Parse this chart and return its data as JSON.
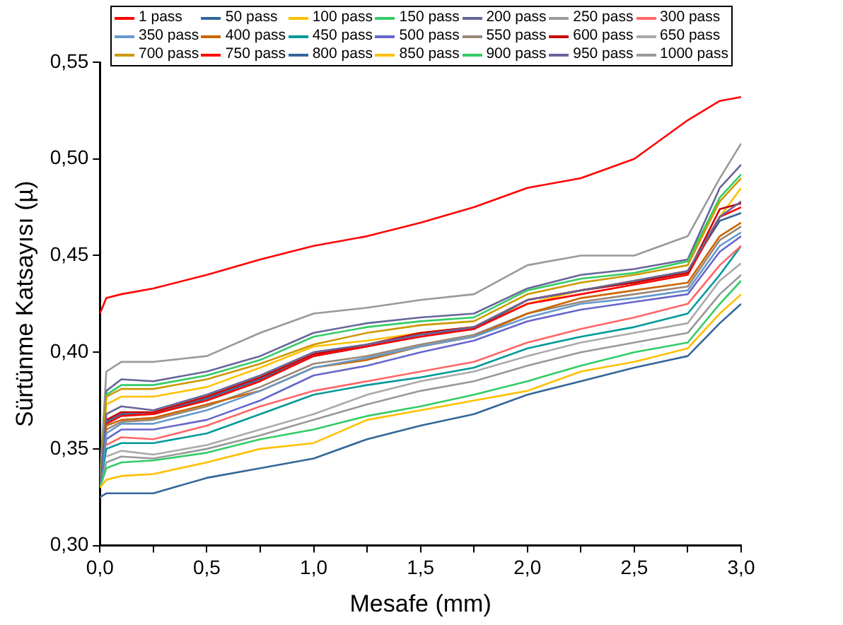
{
  "chart_data": {
    "type": "line",
    "xlabel": "Mesafe (mm)",
    "ylabel": "Sürtünme Katsayısı (µ)",
    "x": [
      0,
      0.03,
      0.1,
      0.25,
      0.5,
      0.75,
      1.0,
      1.25,
      1.5,
      1.75,
      2.0,
      2.25,
      2.5,
      2.75,
      2.9,
      3.0
    ],
    "xlim": [
      0,
      3
    ],
    "ylim": [
      0.3,
      0.55
    ],
    "xticks": [
      {
        "value": 0,
        "label": "0,0"
      },
      {
        "value": 0.25,
        "label": null
      },
      {
        "value": 0.5,
        "label": "0,5"
      },
      {
        "value": 0.75,
        "label": null
      },
      {
        "value": 1,
        "label": "1,0"
      },
      {
        "value": 1.25,
        "label": null
      },
      {
        "value": 1.5,
        "label": "1,5"
      },
      {
        "value": 1.75,
        "label": null
      },
      {
        "value": 2,
        "label": "2,0"
      },
      {
        "value": 2.25,
        "label": null
      },
      {
        "value": 2.5,
        "label": "2,5"
      },
      {
        "value": 2.75,
        "label": null
      },
      {
        "value": 3,
        "label": "3,0"
      }
    ],
    "yticks": [
      {
        "value": 0.3,
        "label": "0,30"
      },
      {
        "value": 0.35,
        "label": "0,35"
      },
      {
        "value": 0.4,
        "label": "0,40"
      },
      {
        "value": 0.45,
        "label": "0,45"
      },
      {
        "value": 0.5,
        "label": "0,50"
      },
      {
        "value": 0.55,
        "label": "0,55"
      }
    ],
    "grid": false,
    "legend": "top",
    "marker": "none",
    "line_style": "solid",
    "series": [
      {
        "name": "1 pass",
        "color": "#ff0000",
        "values": [
          0.42,
          0.428,
          0.43,
          0.433,
          0.44,
          0.448,
          0.455,
          0.46,
          0.467,
          0.475,
          0.485,
          0.49,
          0.5,
          0.52,
          0.53,
          0.532
        ]
      },
      {
        "name": "50 pass",
        "color": "#336699",
        "values": [
          0.325,
          0.327,
          0.327,
          0.327,
          0.335,
          0.34,
          0.345,
          0.355,
          0.362,
          0.368,
          0.378,
          0.385,
          0.392,
          0.398,
          0.415,
          0.425
        ]
      },
      {
        "name": "100 pass",
        "color": "#ffc000",
        "values": [
          0.33,
          0.334,
          0.336,
          0.337,
          0.343,
          0.35,
          0.353,
          0.365,
          0.37,
          0.375,
          0.38,
          0.39,
          0.395,
          0.402,
          0.42,
          0.43
        ]
      },
      {
        "name": "150 pass",
        "color": "#33cc66",
        "values": [
          0.33,
          0.34,
          0.343,
          0.344,
          0.348,
          0.355,
          0.36,
          0.367,
          0.372,
          0.378,
          0.385,
          0.393,
          0.4,
          0.405,
          0.425,
          0.437
        ]
      },
      {
        "name": "200 pass",
        "color": "#666699",
        "values": [
          0.33,
          0.368,
          0.372,
          0.37,
          0.378,
          0.388,
          0.4,
          0.404,
          0.409,
          0.413,
          0.427,
          0.432,
          0.437,
          0.442,
          0.47,
          0.478
        ]
      },
      {
        "name": "250 pass",
        "color": "#999999",
        "values": [
          0.33,
          0.343,
          0.346,
          0.345,
          0.35,
          0.357,
          0.365,
          0.373,
          0.38,
          0.385,
          0.393,
          0.4,
          0.405,
          0.41,
          0.43,
          0.44
        ]
      },
      {
        "name": "300 pass",
        "color": "#ff6666",
        "values": [
          null,
          0.352,
          0.356,
          0.355,
          0.362,
          0.372,
          0.38,
          0.385,
          0.39,
          0.395,
          0.405,
          0.412,
          0.418,
          0.425,
          0.445,
          0.455
        ]
      },
      {
        "name": "350 pass",
        "color": "#6699cc",
        "values": [
          0.33,
          0.358,
          0.363,
          0.363,
          0.37,
          0.38,
          0.392,
          0.397,
          0.403,
          0.408,
          0.418,
          0.425,
          0.428,
          0.432,
          0.455,
          0.462
        ]
      },
      {
        "name": "400 pass",
        "color": "#cc6600",
        "values": [
          0.33,
          0.362,
          0.365,
          0.366,
          0.373,
          0.38,
          0.392,
          0.396,
          0.403,
          0.408,
          0.42,
          0.428,
          0.432,
          0.436,
          0.46,
          0.467
        ]
      },
      {
        "name": "450 pass",
        "color": "#009999",
        "values": [
          0.33,
          0.35,
          0.353,
          0.353,
          0.358,
          0.368,
          0.378,
          0.383,
          0.387,
          0.392,
          0.402,
          0.408,
          0.413,
          0.42,
          0.44,
          0.455
        ]
      },
      {
        "name": "500 pass",
        "color": "#6666cc",
        "values": [
          0.33,
          0.355,
          0.36,
          0.36,
          0.365,
          0.375,
          0.388,
          0.393,
          0.4,
          0.406,
          0.416,
          0.422,
          0.426,
          0.43,
          0.452,
          0.46
        ]
      },
      {
        "name": "550 pass",
        "color": "#998877",
        "values": [
          0.33,
          0.36,
          0.364,
          0.365,
          0.372,
          0.382,
          0.394,
          0.398,
          0.404,
          0.409,
          0.42,
          0.426,
          0.43,
          0.434,
          0.458,
          0.465
        ]
      },
      {
        "name": "600 pass",
        "color": "#cc0000",
        "values": [
          null,
          0.365,
          0.369,
          0.369,
          0.377,
          0.387,
          0.399,
          0.404,
          0.41,
          0.413,
          0.427,
          0.432,
          0.436,
          0.441,
          0.474,
          0.477
        ]
      },
      {
        "name": "650 pass",
        "color": "#aaaaaa",
        "values": [
          null,
          0.346,
          0.349,
          0.347,
          0.352,
          0.36,
          0.368,
          0.378,
          0.385,
          0.39,
          0.398,
          0.405,
          0.41,
          0.415,
          0.437,
          0.446
        ]
      },
      {
        "name": "700 pass",
        "color": "#cc9900",
        "values": [
          0.33,
          0.377,
          0.381,
          0.381,
          0.386,
          0.394,
          0.404,
          0.41,
          0.414,
          0.416,
          0.43,
          0.436,
          0.44,
          0.445,
          0.478,
          0.49
        ]
      },
      {
        "name": "750 pass",
        "color": "#ff0000",
        "values": [
          null,
          0.363,
          0.367,
          0.368,
          0.375,
          0.385,
          0.398,
          0.403,
          0.408,
          0.412,
          0.425,
          0.43,
          0.435,
          0.44,
          0.47,
          0.475
        ]
      },
      {
        "name": "800 pass",
        "color": "#336699",
        "values": [
          0.33,
          0.364,
          0.368,
          0.368,
          0.376,
          0.386,
          0.398,
          0.403,
          0.409,
          0.412,
          0.427,
          0.432,
          0.436,
          0.442,
          0.468,
          0.472
        ]
      },
      {
        "name": "850 pass",
        "color": "#ffc000",
        "values": [
          0.33,
          0.373,
          0.377,
          0.377,
          0.382,
          0.392,
          0.403,
          0.406,
          0.41,
          0.413,
          0.425,
          0.432,
          0.437,
          0.442,
          0.47,
          0.485
        ]
      },
      {
        "name": "900 pass",
        "color": "#33cc66",
        "values": [
          0.33,
          0.378,
          0.383,
          0.383,
          0.388,
          0.396,
          0.408,
          0.413,
          0.416,
          0.418,
          0.432,
          0.438,
          0.441,
          0.447,
          0.48,
          0.492
        ]
      },
      {
        "name": "950 pass",
        "color": "#666699",
        "values": [
          0.33,
          0.38,
          0.386,
          0.385,
          0.39,
          0.398,
          0.41,
          0.415,
          0.418,
          0.42,
          0.433,
          0.44,
          0.443,
          0.448,
          0.485,
          0.497
        ]
      },
      {
        "name": "1000 pass",
        "color": "#999999",
        "values": [
          0.335,
          0.39,
          0.395,
          0.395,
          0.398,
          0.41,
          0.42,
          0.423,
          0.427,
          0.43,
          0.445,
          0.45,
          0.45,
          0.46,
          0.49,
          0.508
        ]
      }
    ]
  }
}
